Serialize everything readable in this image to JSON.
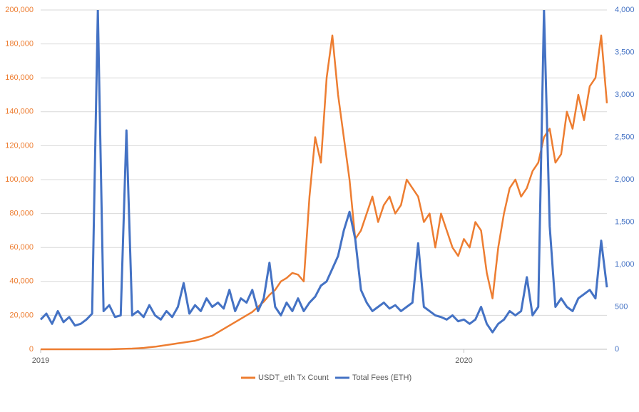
{
  "chart_data": {
    "type": "line",
    "categories": [
      "2019",
      null,
      null,
      null,
      null,
      null,
      null,
      null,
      null,
      null,
      null,
      null,
      null,
      null,
      null,
      null,
      null,
      null,
      null,
      null,
      null,
      null,
      null,
      null,
      null,
      null,
      null,
      null,
      null,
      null,
      null,
      null,
      null,
      null,
      null,
      null,
      null,
      null,
      null,
      null,
      null,
      null,
      null,
      null,
      null,
      null,
      null,
      null,
      null,
      null,
      null,
      null,
      null,
      null,
      null,
      null,
      null,
      null,
      null,
      null,
      null,
      null,
      null,
      null,
      null,
      null,
      null,
      null,
      null,
      null,
      null,
      null,
      null,
      null,
      "2020",
      null,
      null,
      null,
      null,
      null,
      null,
      null,
      null,
      null,
      null,
      null,
      null,
      null,
      null,
      null,
      null,
      null,
      null,
      null,
      null,
      null,
      null,
      null,
      null,
      null
    ],
    "series": [
      {
        "name": "USDT_eth Tx Count",
        "color": "#ed7d31",
        "values": [
          0,
          0,
          0,
          0,
          0,
          0,
          0,
          0,
          0,
          0,
          0,
          0,
          0,
          100,
          200,
          300,
          400,
          600,
          800,
          1200,
          1500,
          2000,
          2500,
          3000,
          3500,
          4000,
          4500,
          5000,
          6000,
          7000,
          8000,
          10000,
          12000,
          14000,
          16000,
          18000,
          20000,
          22000,
          25000,
          28000,
          32000,
          35000,
          40000,
          42000,
          45000,
          44000,
          40000,
          90000,
          125000,
          110000,
          160000,
          185000,
          150000,
          125000,
          100000,
          65000,
          70000,
          80000,
          90000,
          75000,
          85000,
          90000,
          80000,
          85000,
          100000,
          95000,
          90000,
          75000,
          80000,
          60000,
          80000,
          70000,
          60000,
          55000,
          65000,
          60000,
          75000,
          70000,
          45000,
          30000,
          60000,
          80000,
          95000,
          100000,
          90000,
          95000,
          105000,
          110000,
          125000,
          130000,
          110000,
          115000,
          140000,
          130000,
          150000,
          135000,
          155000,
          160000,
          185000,
          145000
        ]
      },
      {
        "name": "Total Fees (ETH)",
        "color": "#4472c4",
        "axis": "y2",
        "values": [
          350,
          420,
          300,
          450,
          320,
          380,
          280,
          300,
          350,
          420,
          4000,
          450,
          520,
          380,
          400,
          2580,
          400,
          450,
          380,
          520,
          400,
          350,
          450,
          380,
          500,
          780,
          420,
          520,
          450,
          600,
          500,
          550,
          480,
          700,
          450,
          600,
          550,
          700,
          450,
          600,
          1020,
          500,
          400,
          550,
          450,
          600,
          450,
          550,
          620,
          750,
          800,
          950,
          1100,
          1400,
          1620,
          1300,
          700,
          550,
          450,
          500,
          550,
          480,
          520,
          450,
          500,
          550,
          1250,
          500,
          450,
          400,
          380,
          350,
          400,
          330,
          350,
          300,
          350,
          500,
          300,
          200,
          300,
          350,
          450,
          400,
          450,
          850,
          400,
          500,
          4000,
          1450,
          500,
          600,
          500,
          450,
          600,
          650,
          700,
          600,
          1280,
          730
        ]
      }
    ],
    "ylim": [
      0,
      200000
    ],
    "yticks": [
      0,
      {
        "value": 20000,
        "label": "20,000"
      },
      {
        "value": 40000,
        "label": "40,000"
      },
      {
        "value": 60000,
        "label": "60,000"
      },
      {
        "value": 80000,
        "label": "80,000"
      },
      {
        "value": 100000,
        "label": "100,000"
      },
      {
        "value": 120000,
        "label": "120,000"
      },
      {
        "value": 140000,
        "label": "140,000"
      },
      {
        "value": 160000,
        "label": "160,000"
      },
      {
        "value": 180000,
        "label": "180,000"
      },
      {
        "value": 200000,
        "label": "200,000"
      }
    ],
    "y2lim": [
      0,
      4000
    ],
    "y2ticks": [
      0,
      500,
      {
        "value": 1000,
        "label": "1,000"
      },
      {
        "value": 1500,
        "label": "1,500"
      },
      {
        "value": 2000,
        "label": "2,000"
      },
      {
        "value": 2500,
        "label": "2,500"
      },
      {
        "value": 3000,
        "label": "3,000"
      },
      {
        "value": 3500,
        "label": "3,500"
      },
      {
        "value": 4000,
        "label": "4,000"
      }
    ],
    "grid": true
  }
}
